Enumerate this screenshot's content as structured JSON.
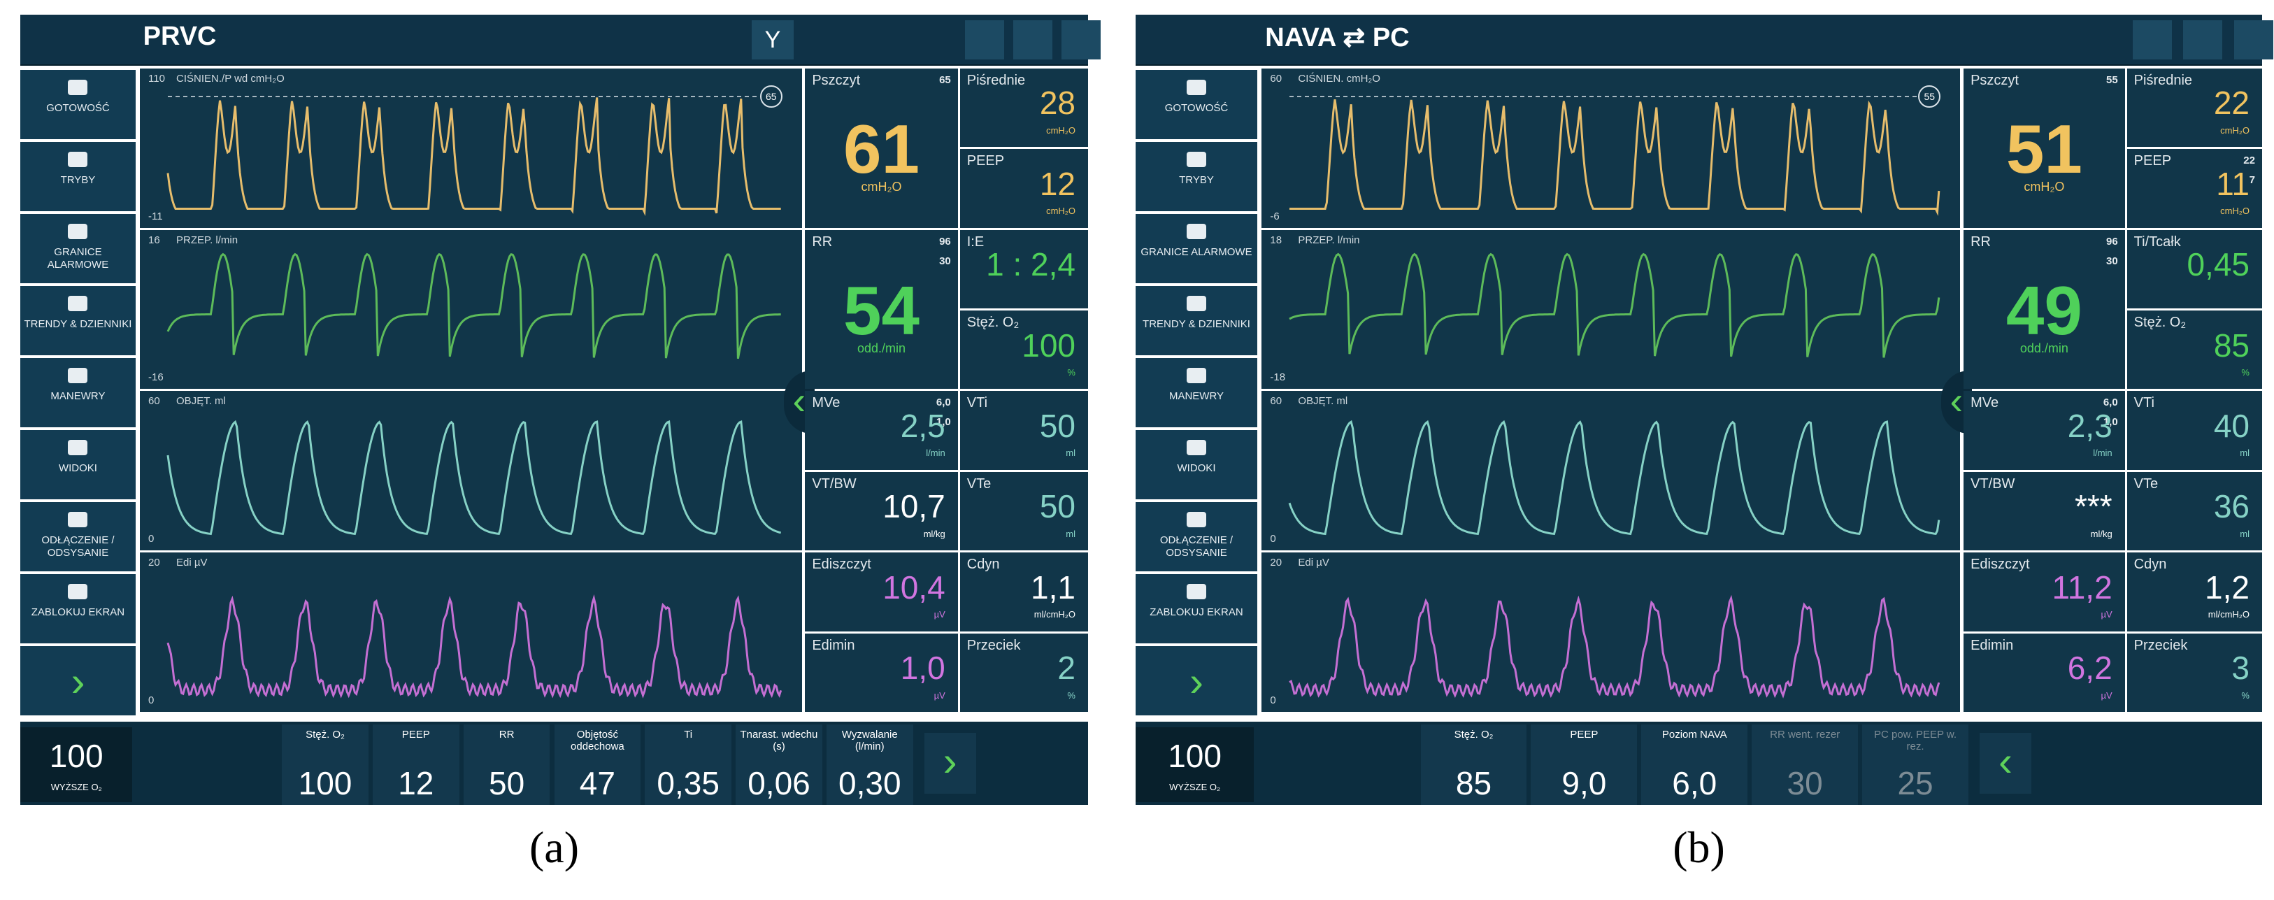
{
  "panels": [
    {
      "caption": "(a)",
      "mode": "PRVC",
      "top_button": "Y",
      "side_menu": [
        "GOTOWOŚĆ",
        "TRYBY",
        "GRANICE ALARMOWE",
        "TRENDY & DZIENNIKI",
        "MANEWRY",
        "WIDOKI",
        "ODŁĄCZENIE / ODSYSANIE",
        "ZABLOKUJ EKRAN"
      ],
      "waveforms": [
        {
          "label": "CIŚNIEN./P wd cmH₂O",
          "top": "110",
          "bottom": "-11",
          "marker": "65",
          "color": "#e6bd6c"
        },
        {
          "label": "PRZEP. l/min",
          "top": "16",
          "bottom": "-16",
          "color": "#5dbb5a"
        },
        {
          "label": "OBJĘT. ml",
          "top": "60",
          "bottom": "0",
          "color": "#86d2c6"
        },
        {
          "label": "Edi µV",
          "top": "20",
          "bottom": "0",
          "color": "#c46fd3"
        }
      ],
      "readouts": [
        {
          "label": "Pszczyt",
          "value": "61",
          "unit": "cmH₂O",
          "limits": [
            "65"
          ],
          "color": "#f1c35f"
        },
        {
          "label": "Piśrednie",
          "value": "28",
          "unit": "cmH₂O",
          "color": "#f1c35f"
        },
        {
          "label": "PEEP",
          "value": "12",
          "unit": "cmH₂O",
          "color": "#f1c35f"
        },
        {
          "label": "RR",
          "value": "54",
          "unit": "odd./min",
          "limits": [
            "96",
            "30"
          ],
          "color": "#4fd15a"
        },
        {
          "label": "I:E",
          "value": "1 : 2,4",
          "color": "#4fd15a"
        },
        {
          "label": "Stęż. O₂",
          "value": "100",
          "unit": "%",
          "color": "#4fd15a"
        },
        {
          "label": "MVe",
          "value": "2,5",
          "unit": "l/min",
          "limits": [
            "6,0",
            "1,0"
          ],
          "color": "#86d2c6"
        },
        {
          "label": "VTi",
          "value": "50",
          "unit": "ml",
          "color": "#86d2c6"
        },
        {
          "label": "VT/BW",
          "value": "10,7",
          "unit": "ml/kg",
          "color": "#ffffff"
        },
        {
          "label": "VTe",
          "value": "50",
          "unit": "ml",
          "color": "#86d2c6"
        },
        {
          "label": "Ediszczyt",
          "value": "10,4",
          "unit": "µV",
          "color": "#d175e0"
        },
        {
          "label": "Cdyn",
          "value": "1,1",
          "unit": "ml/cmH₂O",
          "color": "#ffffff"
        },
        {
          "label": "Edimin",
          "value": "1,0",
          "unit": "µV",
          "color": "#d175e0"
        },
        {
          "label": "Przeciek",
          "value": "2",
          "unit": "%",
          "color": "#86d2c6"
        }
      ],
      "o2_button": {
        "value": "100",
        "label": "WYŻSZE O₂"
      },
      "settings": [
        {
          "label": "Stęż. O₂",
          "value": "100"
        },
        {
          "label": "PEEP",
          "value": "12"
        },
        {
          "label": "RR",
          "value": "50"
        },
        {
          "label": "Objętość oddechowa",
          "value": "47"
        },
        {
          "label": "Ti",
          "value": "0,35"
        },
        {
          "label": "Tnarast. wdechu (s)",
          "value": "0,06"
        },
        {
          "label": "Wyzwalanie (l/min)",
          "value": "0,30"
        }
      ]
    },
    {
      "caption": "(b)",
      "mode": "NAVA ⇄ PC",
      "side_menu": [
        "GOTOWOŚĆ",
        "TRYBY",
        "GRANICE ALARMOWE",
        "TRENDY & DZIENNIKI",
        "MANEWRY",
        "WIDOKI",
        "ODŁĄCZENIE / ODSYSANIE",
        "ZABLOKUJ EKRAN"
      ],
      "waveforms": [
        {
          "label": "CIŚNIEN. cmH₂O",
          "top": "60",
          "bottom": "-6",
          "marker": "55",
          "color": "#e6bd6c"
        },
        {
          "label": "PRZEP. l/min",
          "top": "18",
          "bottom": "-18",
          "color": "#5dbb5a"
        },
        {
          "label": "OBJĘT. ml",
          "top": "60",
          "bottom": "0",
          "color": "#86d2c6"
        },
        {
          "label": "Edi µV",
          "top": "20",
          "bottom": "0",
          "color": "#c46fd3"
        }
      ],
      "readouts": [
        {
          "label": "Pszczyt",
          "value": "51",
          "unit": "cmH₂O",
          "limits": [
            "55"
          ],
          "color": "#f1c35f"
        },
        {
          "label": "Piśrednie",
          "value": "22",
          "unit": "cmH₂O",
          "color": "#f1c35f"
        },
        {
          "label": "PEEP",
          "value": "11",
          "unit": "cmH₂O",
          "limits": [
            "22",
            "7"
          ],
          "color": "#f1c35f"
        },
        {
          "label": "RR",
          "value": "49",
          "unit": "odd./min",
          "limits": [
            "96",
            "30"
          ],
          "color": "#4fd15a"
        },
        {
          "label": "Ti/Tcałk",
          "value": "0,45",
          "color": "#4fd15a"
        },
        {
          "label": "Stęż. O₂",
          "value": "85",
          "unit": "%",
          "color": "#4fd15a"
        },
        {
          "label": "MVe",
          "value": "2,3",
          "unit": "l/min",
          "limits": [
            "6,0",
            "1,0"
          ],
          "color": "#86d2c6"
        },
        {
          "label": "VTi",
          "value": "40",
          "unit": "ml",
          "color": "#86d2c6"
        },
        {
          "label": "VT/BW",
          "value": "***",
          "unit": "ml/kg",
          "color": "#ffffff"
        },
        {
          "label": "VTe",
          "value": "36",
          "unit": "ml",
          "color": "#86d2c6"
        },
        {
          "label": "Ediszczyt",
          "value": "11,2",
          "unit": "µV",
          "color": "#d175e0"
        },
        {
          "label": "Cdyn",
          "value": "1,2",
          "unit": "ml/cmH₂O",
          "color": "#ffffff"
        },
        {
          "label": "Edimin",
          "value": "6,2",
          "unit": "µV",
          "color": "#d175e0"
        },
        {
          "label": "Przeciek",
          "value": "3",
          "unit": "%",
          "color": "#86d2c6"
        }
      ],
      "o2_button": {
        "value": "100",
        "label": "WYŻSZE O₂"
      },
      "settings": [
        {
          "label": "Stęż. O₂",
          "value": "85"
        },
        {
          "label": "PEEP",
          "value": "9,0"
        },
        {
          "label": "Poziom NAVA",
          "value": "6,0"
        },
        {
          "label": "RR went. rezer",
          "value": "30",
          "dimmed": true
        },
        {
          "label": "PC pow. PEEP w. rez.",
          "value": "25",
          "dimmed": true
        }
      ]
    }
  ]
}
